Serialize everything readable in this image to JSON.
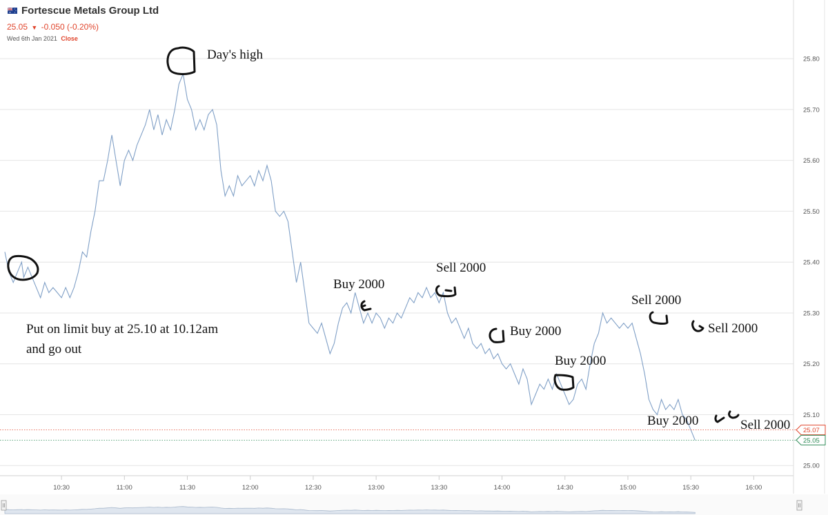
{
  "header": {
    "title": "Fortescue Metals Group Ltd",
    "price": "25.05",
    "change": "-0.050 (-0.20%)",
    "date": "Wed 6th Jan 2021",
    "status": "Close",
    "flag_icon": "australia-flag-icon"
  },
  "colors": {
    "line": "#7f9fc6",
    "grid": "#e4e4e4",
    "down": "#e0442b",
    "up": "#2e8b57",
    "annotation": "#111111"
  },
  "chart_data": {
    "type": "line",
    "x_ticks": [
      "10:30",
      "11:00",
      "11:30",
      "12:00",
      "12:30",
      "13:00",
      "13:30",
      "14:00",
      "14:30",
      "15:00",
      "15:30",
      "16:00"
    ],
    "y_ticks": [
      "25.00",
      "25.10",
      "25.20",
      "25.30",
      "25.40",
      "25.50",
      "25.60",
      "25.70",
      "25.80"
    ],
    "xlim": [
      "10:03",
      "16:15"
    ],
    "ylim": [
      24.98,
      25.83
    ],
    "grid": true,
    "series": [
      {
        "points": [
          [
            "10:03",
            25.42
          ],
          [
            "10:05",
            25.38
          ],
          [
            "10:07",
            25.36
          ],
          [
            "10:09",
            25.38
          ],
          [
            "10:11",
            25.4
          ],
          [
            "10:12",
            25.37
          ],
          [
            "10:14",
            25.39
          ],
          [
            "10:16",
            25.37
          ],
          [
            "10:18",
            25.35
          ],
          [
            "10:20",
            25.33
          ],
          [
            "10:22",
            25.36
          ],
          [
            "10:24",
            25.34
          ],
          [
            "10:26",
            25.35
          ],
          [
            "10:28",
            25.34
          ],
          [
            "10:30",
            25.33
          ],
          [
            "10:32",
            25.35
          ],
          [
            "10:34",
            25.33
          ],
          [
            "10:36",
            25.35
          ],
          [
            "10:38",
            25.38
          ],
          [
            "10:40",
            25.42
          ],
          [
            "10:42",
            25.41
          ],
          [
            "10:44",
            25.46
          ],
          [
            "10:46",
            25.5
          ],
          [
            "10:48",
            25.56
          ],
          [
            "10:50",
            25.56
          ],
          [
            "10:52",
            25.6
          ],
          [
            "10:54",
            25.65
          ],
          [
            "10:56",
            25.6
          ],
          [
            "10:58",
            25.55
          ],
          [
            "11:00",
            25.6
          ],
          [
            "11:02",
            25.62
          ],
          [
            "11:04",
            25.6
          ],
          [
            "11:06",
            25.63
          ],
          [
            "11:08",
            25.65
          ],
          [
            "11:10",
            25.67
          ],
          [
            "11:12",
            25.7
          ],
          [
            "11:14",
            25.66
          ],
          [
            "11:16",
            25.69
          ],
          [
            "11:18",
            25.65
          ],
          [
            "11:20",
            25.68
          ],
          [
            "11:22",
            25.66
          ],
          [
            "11:24",
            25.7
          ],
          [
            "11:26",
            25.75
          ],
          [
            "11:28",
            25.77
          ],
          [
            "11:30",
            25.72
          ],
          [
            "11:32",
            25.7
          ],
          [
            "11:34",
            25.66
          ],
          [
            "11:36",
            25.68
          ],
          [
            "11:38",
            25.66
          ],
          [
            "11:40",
            25.69
          ],
          [
            "11:42",
            25.7
          ],
          [
            "11:44",
            25.67
          ],
          [
            "11:46",
            25.58
          ],
          [
            "11:48",
            25.53
          ],
          [
            "11:50",
            25.55
          ],
          [
            "11:52",
            25.53
          ],
          [
            "11:54",
            25.57
          ],
          [
            "11:56",
            25.55
          ],
          [
            "11:58",
            25.56
          ],
          [
            "12:00",
            25.57
          ],
          [
            "12:02",
            25.55
          ],
          [
            "12:04",
            25.58
          ],
          [
            "12:06",
            25.56
          ],
          [
            "12:08",
            25.59
          ],
          [
            "12:10",
            25.56
          ],
          [
            "12:12",
            25.5
          ],
          [
            "12:14",
            25.49
          ],
          [
            "12:16",
            25.5
          ],
          [
            "12:18",
            25.48
          ],
          [
            "12:20",
            25.42
          ],
          [
            "12:22",
            25.36
          ],
          [
            "12:24",
            25.4
          ],
          [
            "12:26",
            25.34
          ],
          [
            "12:28",
            25.28
          ],
          [
            "12:30",
            25.27
          ],
          [
            "12:32",
            25.26
          ],
          [
            "12:34",
            25.28
          ],
          [
            "12:36",
            25.25
          ],
          [
            "12:38",
            25.22
          ],
          [
            "12:40",
            25.24
          ],
          [
            "12:42",
            25.28
          ],
          [
            "12:44",
            25.31
          ],
          [
            "12:46",
            25.32
          ],
          [
            "12:48",
            25.3
          ],
          [
            "12:50",
            25.34
          ],
          [
            "12:52",
            25.31
          ],
          [
            "12:54",
            25.28
          ],
          [
            "12:56",
            25.3
          ],
          [
            "12:58",
            25.28
          ],
          [
            "13:00",
            25.3
          ],
          [
            "13:02",
            25.29
          ],
          [
            "13:04",
            25.27
          ],
          [
            "13:06",
            25.29
          ],
          [
            "13:08",
            25.28
          ],
          [
            "13:10",
            25.3
          ],
          [
            "13:12",
            25.29
          ],
          [
            "13:14",
            25.31
          ],
          [
            "13:16",
            25.33
          ],
          [
            "13:18",
            25.32
          ],
          [
            "13:20",
            25.34
          ],
          [
            "13:22",
            25.33
          ],
          [
            "13:24",
            25.35
          ],
          [
            "13:26",
            25.33
          ],
          [
            "13:28",
            25.34
          ],
          [
            "13:30",
            25.32
          ],
          [
            "13:32",
            25.34
          ],
          [
            "13:34",
            25.3
          ],
          [
            "13:36",
            25.28
          ],
          [
            "13:38",
            25.29
          ],
          [
            "13:40",
            25.27
          ],
          [
            "13:42",
            25.25
          ],
          [
            "13:44",
            25.27
          ],
          [
            "13:46",
            25.24
          ],
          [
            "13:48",
            25.23
          ],
          [
            "13:50",
            25.24
          ],
          [
            "13:52",
            25.22
          ],
          [
            "13:54",
            25.23
          ],
          [
            "13:56",
            25.21
          ],
          [
            "13:58",
            25.22
          ],
          [
            "14:00",
            25.2
          ],
          [
            "14:02",
            25.19
          ],
          [
            "14:04",
            25.2
          ],
          [
            "14:06",
            25.18
          ],
          [
            "14:08",
            25.16
          ],
          [
            "14:10",
            25.19
          ],
          [
            "14:12",
            25.17
          ],
          [
            "14:14",
            25.12
          ],
          [
            "14:16",
            25.14
          ],
          [
            "14:18",
            25.16
          ],
          [
            "14:20",
            25.15
          ],
          [
            "14:22",
            25.17
          ],
          [
            "14:24",
            25.15
          ],
          [
            "14:26",
            25.18
          ],
          [
            "14:28",
            25.16
          ],
          [
            "14:30",
            25.14
          ],
          [
            "14:32",
            25.12
          ],
          [
            "14:34",
            25.13
          ],
          [
            "14:36",
            25.16
          ],
          [
            "14:38",
            25.17
          ],
          [
            "14:40",
            25.15
          ],
          [
            "14:42",
            25.2
          ],
          [
            "14:44",
            25.24
          ],
          [
            "14:46",
            25.26
          ],
          [
            "14:48",
            25.3
          ],
          [
            "14:50",
            25.28
          ],
          [
            "14:52",
            25.29
          ],
          [
            "14:54",
            25.28
          ],
          [
            "14:56",
            25.27
          ],
          [
            "14:58",
            25.28
          ],
          [
            "15:00",
            25.27
          ],
          [
            "15:02",
            25.28
          ],
          [
            "15:04",
            25.25
          ],
          [
            "15:06",
            25.22
          ],
          [
            "15:08",
            25.18
          ],
          [
            "15:10",
            25.13
          ],
          [
            "15:12",
            25.11
          ],
          [
            "15:14",
            25.1
          ],
          [
            "15:16",
            25.13
          ],
          [
            "15:18",
            25.11
          ],
          [
            "15:20",
            25.12
          ],
          [
            "15:22",
            25.11
          ],
          [
            "15:24",
            25.13
          ],
          [
            "15:26",
            25.1
          ],
          [
            "15:28",
            25.09
          ],
          [
            "15:30",
            25.07
          ],
          [
            "15:32",
            25.05
          ]
        ]
      }
    ],
    "last_price_badges": [
      {
        "label": "25.07",
        "value": 25.07,
        "color": "#e0442b"
      },
      {
        "label": "25.05",
        "value": 25.05,
        "color": "#2e8b57"
      }
    ],
    "annotations": [
      "Day's high",
      "Put on limit buy at 25.10 at 10.12am",
      "and go out",
      "Buy 2000",
      "Sell 2000",
      "Buy 2000",
      "Buy 2000",
      "Sell 2000",
      "Sell 2000",
      "Buy 2000",
      "Sell 2000"
    ]
  },
  "navigator": {
    "left_handle_icon": "scroll-handle-icon",
    "right_handle_icon": "scroll-handle-icon"
  }
}
